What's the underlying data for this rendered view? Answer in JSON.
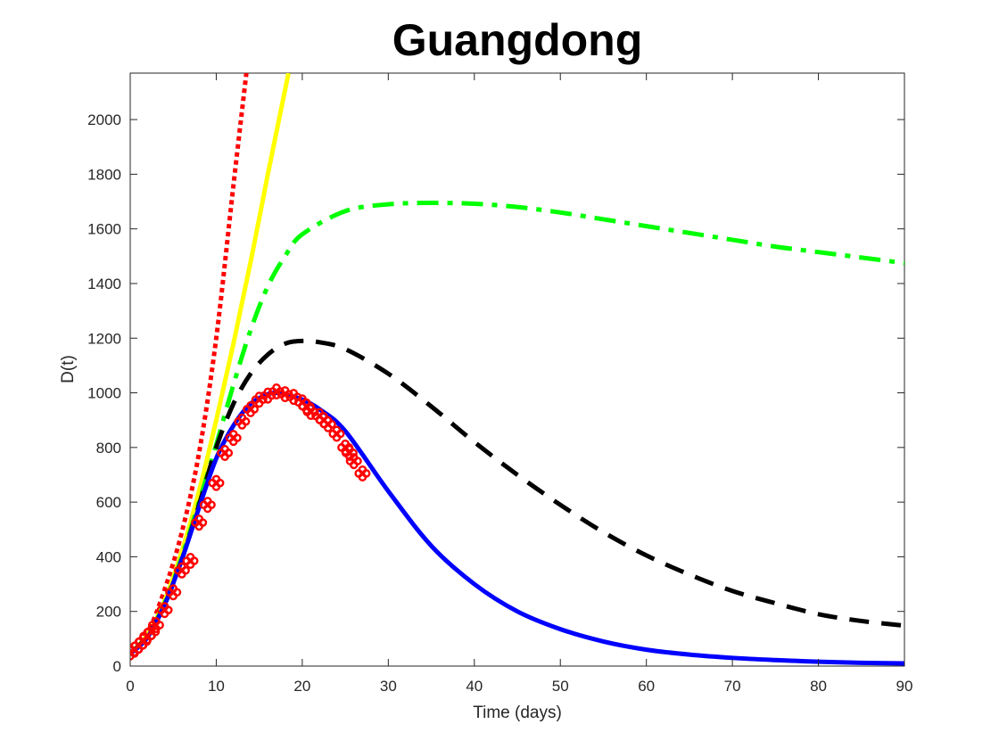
{
  "chart_data": {
    "type": "line",
    "title": "Guangdong",
    "xlabel": "Time (days)",
    "ylabel": "D(t)",
    "xlim": [
      0,
      90
    ],
    "ylim": [
      0,
      2170
    ],
    "xticks": [
      0,
      10,
      20,
      30,
      40,
      50,
      60,
      70,
      80,
      90
    ],
    "yticks": [
      0,
      200,
      400,
      600,
      800,
      1000,
      1200,
      1400,
      1600,
      1800,
      2000
    ],
    "grid": false,
    "legend": "none",
    "series": [
      {
        "style": "dotted",
        "color": "#ff0000",
        "x": [
          0,
          2,
          4,
          6,
          8,
          10,
          12,
          13.5
        ],
        "y": [
          45,
          120,
          280,
          490,
          780,
          1200,
          1760,
          2170
        ]
      },
      {
        "style": "solid",
        "color": "#ffff00",
        "x": [
          0,
          2,
          4,
          6,
          8,
          10,
          12,
          14,
          16,
          18.4
        ],
        "y": [
          45,
          115,
          240,
          420,
          640,
          900,
          1180,
          1480,
          1800,
          2170
        ]
      },
      {
        "style": "dashdot",
        "color": "#00ff00",
        "x": [
          0,
          2,
          4,
          6,
          8,
          10,
          12,
          14,
          16,
          18,
          20,
          25,
          30,
          35,
          40,
          45,
          50,
          55,
          60,
          65,
          70,
          75,
          80,
          85,
          90
        ],
        "y": [
          45,
          110,
          230,
          400,
          600,
          810,
          1030,
          1230,
          1390,
          1500,
          1580,
          1665,
          1690,
          1695,
          1692,
          1680,
          1660,
          1635,
          1610,
          1585,
          1560,
          1535,
          1515,
          1495,
          1475
        ]
      },
      {
        "style": "dashed",
        "color": "#000000",
        "x": [
          0,
          2,
          4,
          6,
          8,
          10,
          12,
          14,
          16,
          18,
          20,
          22,
          25,
          30,
          35,
          40,
          45,
          50,
          55,
          60,
          65,
          70,
          75,
          80,
          85,
          90
        ],
        "y": [
          45,
          110,
          225,
          390,
          590,
          800,
          960,
          1070,
          1140,
          1180,
          1190,
          1185,
          1160,
          1070,
          950,
          820,
          700,
          590,
          490,
          405,
          335,
          275,
          230,
          190,
          165,
          148
        ]
      },
      {
        "style": "solid",
        "color": "#0000ff",
        "x": [
          0,
          2,
          4,
          6,
          8,
          10,
          12,
          14,
          16,
          17,
          18,
          20,
          22,
          25,
          30,
          35,
          40,
          45,
          50,
          55,
          60,
          65,
          70,
          75,
          80,
          85,
          90
        ],
        "y": [
          45,
          105,
          225,
          390,
          580,
          760,
          880,
          960,
          995,
          1000,
          995,
          975,
          940,
          860,
          640,
          440,
          300,
          200,
          135,
          90,
          60,
          42,
          30,
          22,
          16,
          12,
          10
        ]
      },
      {
        "style": "markers",
        "color": "#ff0000",
        "x": [
          0,
          0.5,
          1,
          1.5,
          2,
          2.5,
          3,
          4,
          5,
          6,
          7,
          8,
          9,
          10,
          11,
          12,
          13,
          14,
          15,
          16,
          17,
          18,
          19,
          20,
          20.5,
          21,
          22,
          22.5,
          23,
          24,
          25,
          25.5,
          26,
          27
        ],
        "y": [
          50,
          60,
          75,
          90,
          110,
          125,
          150,
          205,
          270,
          350,
          385,
          525,
          590,
          670,
          780,
          835,
          895,
          940,
          975,
          990,
          1005,
          995,
          985,
          965,
          950,
          930,
          915,
          900,
          885,
          850,
          800,
          780,
          750,
          705
        ]
      }
    ]
  }
}
